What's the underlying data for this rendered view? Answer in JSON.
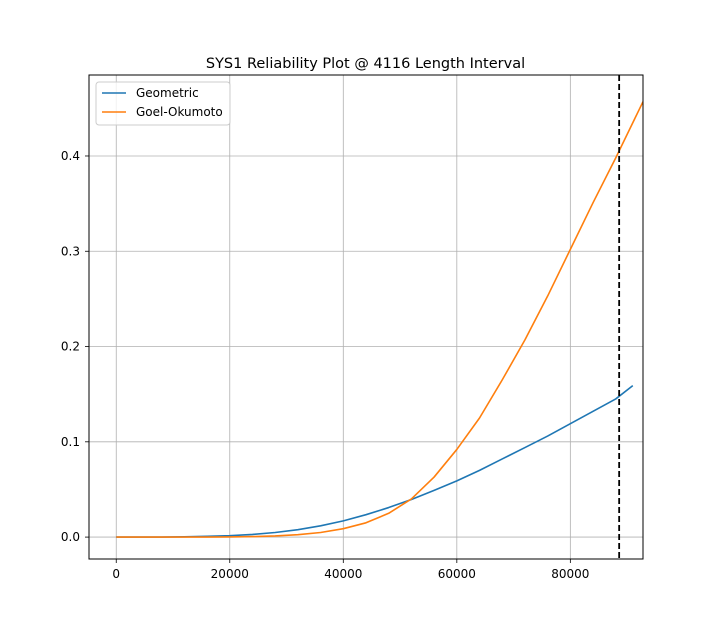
{
  "chart_data": {
    "type": "line",
    "title": "SYS1 Reliability Plot @ 4116 Length Interval",
    "xlabel": "",
    "ylabel": "",
    "xlim": [
      -4800,
      92800
    ],
    "ylim": [
      -0.023,
      0.485
    ],
    "xticks": [
      0,
      20000,
      40000,
      60000,
      80000
    ],
    "xtick_labels": [
      "0",
      "20000",
      "40000",
      "60000",
      "80000"
    ],
    "yticks": [
      0.0,
      0.1,
      0.2,
      0.3,
      0.4
    ],
    "ytick_labels": [
      "0.0",
      "0.1",
      "0.2",
      "0.3",
      "0.4"
    ],
    "grid": true,
    "legend_position": "top-left",
    "vline": {
      "x": 88600,
      "style": "dashed",
      "color": "#000000"
    },
    "series": [
      {
        "name": "Geometric",
        "color": "#1f77b4",
        "x": [
          0,
          4000,
          8000,
          12000,
          16000,
          20000,
          24000,
          28000,
          32000,
          36000,
          40000,
          44000,
          48000,
          52000,
          56000,
          60000,
          64000,
          68000,
          72000,
          76000,
          80000,
          84000,
          88000,
          91000
        ],
        "y": [
          0.0,
          0.0,
          0.0,
          0.0003,
          0.0008,
          0.0015,
          0.0028,
          0.0048,
          0.0078,
          0.0118,
          0.017,
          0.0235,
          0.031,
          0.0395,
          0.049,
          0.059,
          0.07,
          0.082,
          0.094,
          0.106,
          0.119,
          0.132,
          0.145,
          0.159
        ]
      },
      {
        "name": "Goel-Okumoto",
        "color": "#ff7f0e",
        "x": [
          0,
          8000,
          16000,
          20000,
          24000,
          28000,
          32000,
          36000,
          40000,
          44000,
          48000,
          52000,
          56000,
          60000,
          64000,
          68000,
          72000,
          76000,
          80000,
          84000,
          88000,
          92800
        ],
        "y": [
          0.0,
          0.0,
          0.0,
          0.0002,
          0.0005,
          0.0012,
          0.0025,
          0.0048,
          0.0088,
          0.015,
          0.025,
          0.04,
          0.063,
          0.092,
          0.125,
          0.165,
          0.207,
          0.253,
          0.302,
          0.351,
          0.398,
          0.457
        ]
      }
    ]
  }
}
